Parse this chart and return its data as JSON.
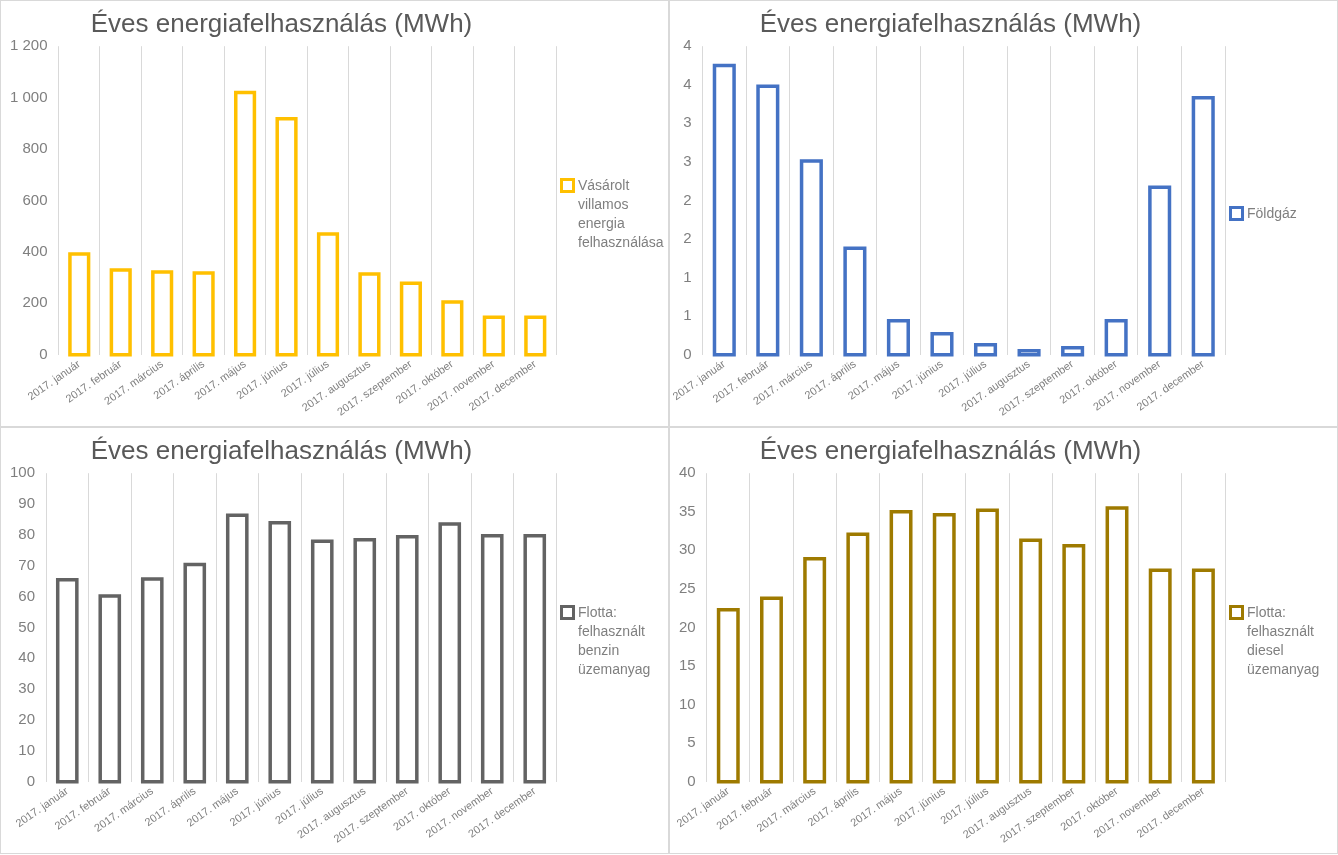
{
  "chart_data": [
    {
      "type": "bar",
      "title": "Éves energiafelhasználás (MWh)",
      "categories": [
        "2017. január",
        "2017. február",
        "2017. március",
        "2017. április",
        "2017. május",
        "2017. június",
        "2017. július",
        "2017. augusztus",
        "2017. szeptember",
        "2017. október",
        "2017. november",
        "2017. december"
      ],
      "series": [
        {
          "name": "Vásárolt villamos energia felhasználása",
          "color": "#ffc000",
          "values": [
            392,
            329,
            322,
            318,
            1020,
            918,
            469,
            314,
            278,
            205,
            146,
            146
          ]
        }
      ],
      "ylim": [
        0,
        1200
      ],
      "yticks": [
        0,
        200,
        400,
        600,
        800,
        {
          "value": 1000,
          "label": "1 000"
        },
        {
          "value": 1200,
          "label": "1 200"
        }
      ],
      "grid": "x",
      "legend": "right"
    },
    {
      "type": "bar",
      "title": "Éves energiafelhasználás (MWh)",
      "categories": [
        "2017. január",
        "2017. február",
        "2017. március",
        "2017. április",
        "2017. május",
        "2017. június",
        "2017. július",
        "2017. augusztus",
        "2017. szeptember",
        "2017. október",
        "2017. november",
        "2017. december"
      ],
      "series": [
        {
          "name": "Földgáz",
          "color": "#4472c4",
          "values": [
            3.75,
            3.48,
            2.51,
            1.38,
            0.44,
            0.27,
            0.13,
            0.05,
            0.09,
            0.44,
            2.17,
            3.33
          ]
        }
      ],
      "ylim": [
        0,
        4
      ],
      "yticks": [
        0,
        {
          "value": 0.5,
          "label": "1"
        },
        1,
        {
          "value": 1.5,
          "label": "2"
        },
        2,
        {
          "value": 2.5,
          "label": "3"
        },
        3,
        {
          "value": 3.5,
          "label": "4"
        },
        4
      ],
      "grid": "x",
      "legend": "right"
    },
    {
      "type": "bar",
      "title": "Éves energiafelhasználás (MWh)",
      "categories": [
        "2017. január",
        "2017. február",
        "2017. március",
        "2017. április",
        "2017. május",
        "2017. június",
        "2017. július",
        "2017. augusztus",
        "2017. szeptember",
        "2017. október",
        "2017. november",
        "2017. december"
      ],
      "series": [
        {
          "name": "Flotta: felhasznált benzin üzemanyag",
          "color": "#636363",
          "values": [
            65.5,
            60.2,
            65.7,
            70.4,
            86.4,
            83.9,
            77.9,
            78.4,
            79.4,
            83.5,
            79.7,
            79.7
          ]
        }
      ],
      "ylim": [
        0,
        100
      ],
      "yticks": [
        0,
        10,
        20,
        30,
        40,
        50,
        60,
        70,
        80,
        90,
        100
      ],
      "grid": "x",
      "legend": "right"
    },
    {
      "type": "bar",
      "title": "Éves energiafelhasználás (MWh)",
      "categories": [
        "2017. január",
        "2017. február",
        "2017. március",
        "2017. április",
        "2017. május",
        "2017. június",
        "2017. július",
        "2017. augusztus",
        "2017. szeptember",
        "2017. október",
        "2017. november",
        "2017. december"
      ],
      "series": [
        {
          "name": "Flotta: felhasznált diesel üzemanyag",
          "color": "#9e7a00",
          "values": [
            22.3,
            23.8,
            28.9,
            32.1,
            35.0,
            34.6,
            35.2,
            31.3,
            30.6,
            35.5,
            27.4,
            27.4
          ]
        }
      ],
      "ylim": [
        0,
        40
      ],
      "yticks": [
        0,
        5,
        10,
        15,
        20,
        25,
        30,
        35,
        40
      ],
      "grid": "x",
      "legend": "right"
    }
  ]
}
